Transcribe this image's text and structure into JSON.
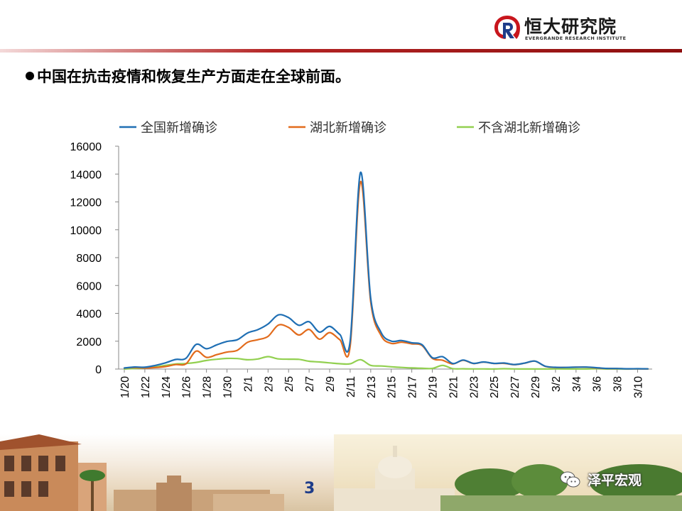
{
  "header": {
    "logo_name": "恒大研究院",
    "logo_en": "EVERGRANDE RESEARCH INSTITUTE",
    "logo_icon": "evergrande-logo-icon",
    "accent_color": "#b42424"
  },
  "headline": "中国在抗击疫情和恢复生产方面走在全球前面。",
  "footer": {
    "page_number": "3",
    "wechat_label": "泽平宏观",
    "wechat_icon": "wechat-icon"
  },
  "chart_data": {
    "type": "line",
    "title": "",
    "xlabel": "",
    "ylabel": "",
    "ylim": [
      0,
      16000
    ],
    "yticks": [
      0,
      2000,
      4000,
      6000,
      8000,
      10000,
      12000,
      14000,
      16000
    ],
    "legend_position": "top",
    "grid": false,
    "x": [
      "1/20",
      "1/21",
      "1/22",
      "1/23",
      "1/24",
      "1/25",
      "1/26",
      "1/27",
      "1/28",
      "1/29",
      "1/30",
      "1/31",
      "2/1",
      "2/2",
      "2/3",
      "2/4",
      "2/5",
      "2/6",
      "2/7",
      "2/8",
      "2/9",
      "2/10",
      "2/11",
      "2/12",
      "2/13",
      "2/14",
      "2/15",
      "2/16",
      "2/17",
      "2/18",
      "2/19",
      "2/20",
      "2/21",
      "2/22",
      "2/23",
      "2/24",
      "2/25",
      "2/26",
      "2/27",
      "2/28",
      "2/29",
      "3/1",
      "3/2",
      "3/3",
      "3/4",
      "3/5",
      "3/6",
      "3/7",
      "3/8",
      "3/9",
      "3/10",
      "3/11"
    ],
    "x_tick_labels": [
      "1/20",
      "1/22",
      "1/24",
      "1/26",
      "1/28",
      "1/30",
      "2/1",
      "2/3",
      "2/5",
      "2/7",
      "2/9",
      "2/11",
      "2/13",
      "2/15",
      "2/17",
      "2/19",
      "2/21",
      "2/23",
      "2/25",
      "2/27",
      "2/29",
      "3/2",
      "3/4",
      "3/6",
      "3/8",
      "3/10"
    ],
    "series": [
      {
        "name": "全国新增确诊",
        "color": "#1f6fb4",
        "values": [
          77,
          149,
          131,
          259,
          444,
          688,
          769,
          1771,
          1459,
          1737,
          1982,
          2102,
          2590,
          2829,
          3235,
          3887,
          3694,
          3143,
          3399,
          2656,
          3062,
          2478,
          2015,
          14108,
          5090,
          2641,
          2008,
          2048,
          1886,
          1749,
          820,
          889,
          397,
          648,
          409,
          508,
          406,
          433,
          327,
          427,
          573,
          202,
          125,
          119,
          139,
          143,
          99,
          44,
          40,
          19,
          24,
          15
        ]
      },
      {
        "name": "湖北新增确诊",
        "color": "#e26b1c",
        "values": [
          72,
          105,
          69,
          105,
          180,
          323,
          371,
          1291,
          840,
          1032,
          1220,
          1347,
          1921,
          2103,
          2345,
          3156,
          2987,
          2447,
          2841,
          2147,
          2618,
          2097,
          1638,
          13436,
          4823,
          2420,
          1843,
          1933,
          1807,
          1693,
          775,
          631,
          366,
          630,
          398,
          499,
          401,
          409,
          318,
          423,
          570,
          196,
          114,
          115,
          134,
          139,
          74,
          41,
          36,
          17,
          13,
          8
        ]
      },
      {
        "name": "不含湖北新增确诊",
        "color": "#92d050",
        "values": [
          5,
          44,
          62,
          154,
          264,
          365,
          398,
          480,
          619,
          705,
          762,
          755,
          669,
          726,
          890,
          731,
          707,
          696,
          558,
          509,
          444,
          381,
          377,
          672,
          267,
          221,
          165,
          115,
          79,
          56,
          45,
          258,
          31,
          18,
          11,
          9,
          5,
          24,
          9,
          4,
          3,
          6,
          11,
          4,
          5,
          4,
          25,
          3,
          4,
          2,
          11,
          7
        ]
      }
    ]
  }
}
